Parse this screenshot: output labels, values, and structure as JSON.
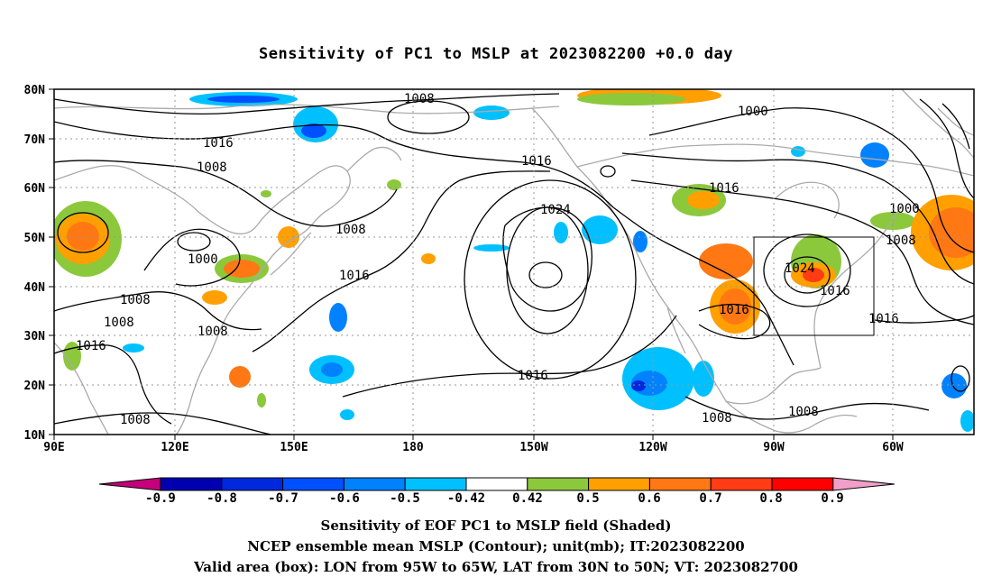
{
  "title": "Sensitivity of PC1 to MSLP at 2023082200 +0.0 day",
  "lat_labels": [
    "80N",
    "70N",
    "60N",
    "50N",
    "40N",
    "30N",
    "20N",
    "10N"
  ],
  "lon_labels": [
    "90E",
    "120E",
    "150E",
    "180",
    "150W",
    "120W",
    "90W",
    "60W"
  ],
  "contour_labels": [
    {
      "text": "1008"
    },
    {
      "text": "1016"
    },
    {
      "text": "1008"
    },
    {
      "text": "1008"
    },
    {
      "text": "1000"
    },
    {
      "text": "1016"
    },
    {
      "text": "1008"
    },
    {
      "text": "1008"
    },
    {
      "text": "1016"
    },
    {
      "text": "1008"
    },
    {
      "text": "1008"
    },
    {
      "text": "1016"
    },
    {
      "text": "1024"
    },
    {
      "text": "1016"
    },
    {
      "text": "1000"
    },
    {
      "text": "1016"
    },
    {
      "text": "1024"
    },
    {
      "text": "1016"
    },
    {
      "text": "1016"
    },
    {
      "text": "1000"
    },
    {
      "text": "1008"
    },
    {
      "text": "1016"
    },
    {
      "text": "1008"
    },
    {
      "text": "1008"
    },
    {
      "text": "1016"
    }
  ],
  "valid_box": {
    "lon_from": "95W",
    "lon_to": "65W",
    "lat_from": "30N",
    "lat_to": "50N"
  },
  "colorbar": {
    "labels": [
      "-0.9",
      "-0.8",
      "-0.7",
      "-0.6",
      "-0.5",
      "-0.42",
      "0.42",
      "0.5",
      "0.6",
      "0.7",
      "0.8",
      "0.9"
    ],
    "colors": [
      "#c4007a",
      "#0000b0",
      "#0028dc",
      "#0050ff",
      "#0082ff",
      "#00c0ff",
      "#ffffff",
      "#8cc83c",
      "#ffa000",
      "#ff7814",
      "#ff3c14",
      "#ff0000",
      "#f0a0c8"
    ]
  },
  "captions": {
    "line1": "Sensitivity of EOF PC1 to MSLP field (Shaded)",
    "line2": "NCEP ensemble mean MSLP (Contour); unit(mb); IT:2023082200",
    "line3": "Valid area (box): LON from 95W to 65W, LAT from 30N to 50N; VT: 2023082700"
  }
}
